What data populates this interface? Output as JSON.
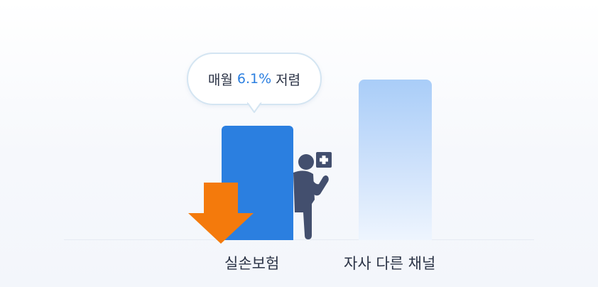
{
  "callout": {
    "prefix": "매월",
    "highlight": "6.1%",
    "suffix": "저렴"
  },
  "chart_data": {
    "type": "bar",
    "categories": [
      "실손보험",
      "자사 다른 채널"
    ],
    "relative_heights": [
      0.71,
      1.0
    ],
    "annotation": "매월 6.1% 저렴"
  },
  "labels": {
    "ours": "실손보험",
    "other": "자사 다른 채널"
  },
  "colors": {
    "primary_bar": "#2b7fe0",
    "secondary_bar_top": "#a9cdf8",
    "arrow": "#f47a0c",
    "person": "#434f6e",
    "highlight_text": "#2b7fe0"
  },
  "icons": {
    "arrow": "down-arrow-icon",
    "person": "person-holding-medical-card-icon"
  }
}
